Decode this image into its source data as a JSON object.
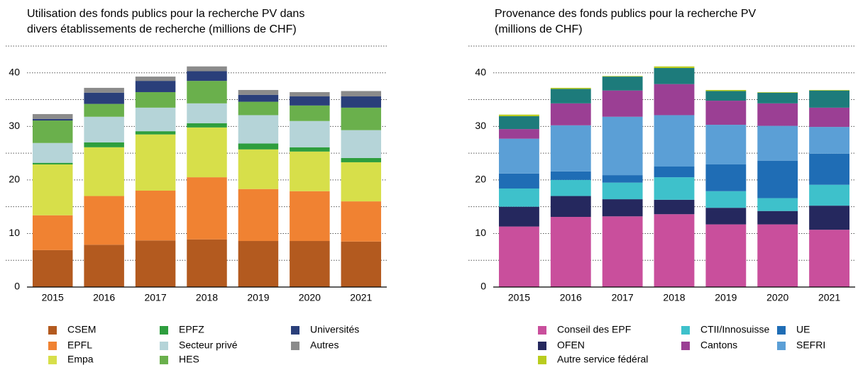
{
  "chart_data": [
    {
      "type": "bar",
      "stacked": true,
      "title_lines": [
        "Utilisation des fonds publics pour la recherche PV dans",
        "divers établissements de recherche (millions de CHF)"
      ],
      "categories": [
        "2015",
        "2016",
        "2017",
        "2018",
        "2019",
        "2020",
        "2021"
      ],
      "series": [
        {
          "name": "CSEM",
          "color": "#b35a1f",
          "values": [
            6.9,
            7.9,
            8.7,
            8.9,
            8.6,
            8.6,
            8.5
          ]
        },
        {
          "name": "EPFL",
          "color": "#f08232",
          "values": [
            6.5,
            9.1,
            9.3,
            11.6,
            9.7,
            9.3,
            7.5
          ]
        },
        {
          "name": "Empa",
          "color": "#d7df4a",
          "values": [
            9.5,
            9.1,
            10.5,
            9.3,
            7.4,
            7.4,
            7.3
          ]
        },
        {
          "name": "EPFZ",
          "color": "#2e9e3e",
          "values": [
            0.3,
            0.9,
            0.6,
            0.8,
            1.1,
            0.8,
            0.8
          ]
        },
        {
          "name": "Secteur privé",
          "color": "#b5d4d8",
          "values": [
            3.7,
            4.8,
            4.4,
            3.7,
            5.3,
            4.9,
            5.2
          ]
        },
        {
          "name": "HES",
          "color": "#6ab04c",
          "values": [
            4.2,
            2.4,
            2.9,
            4.2,
            2.5,
            2.9,
            4.2
          ]
        },
        {
          "name": "Universités",
          "color": "#2a3f7a",
          "values": [
            0.3,
            2.1,
            2.1,
            1.8,
            1.3,
            1.7,
            2.1
          ]
        },
        {
          "name": "Autres",
          "color": "#8b8b8b",
          "values": [
            0.9,
            0.9,
            0.8,
            0.9,
            0.9,
            0.8,
            1.0
          ]
        }
      ],
      "ylim": [
        0,
        45
      ],
      "yticks": [
        0,
        10,
        20,
        30,
        40
      ],
      "minor_grid": [
        5,
        15,
        25,
        35,
        45
      ],
      "grid": true
    },
    {
      "type": "bar",
      "stacked": true,
      "title_lines": [
        "Provenance des fonds publics pour la recherche PV",
        "(millions de CHF)"
      ],
      "categories": [
        "2015",
        "2016",
        "2017",
        "2018",
        "2019",
        "2020",
        "2021"
      ],
      "series": [
        {
          "name": "Conseil des EPF",
          "color": "#c94f9c",
          "values": [
            11.3,
            13.1,
            13.2,
            13.6,
            11.7,
            11.7,
            10.7
          ]
        },
        {
          "name": "OFEN",
          "color": "#25285e",
          "values": [
            3.7,
            3.9,
            3.2,
            2.7,
            3.1,
            2.5,
            4.5
          ]
        },
        {
          "name": "CTII/Innosuisse",
          "color": "#3ec1cb",
          "values": [
            3.4,
            3.0,
            3.1,
            4.2,
            3.1,
            2.4,
            3.9
          ]
        },
        {
          "name": "UE",
          "color": "#1f6db5",
          "values": [
            2.8,
            1.6,
            1.4,
            2.0,
            5.0,
            7.0,
            5.8
          ]
        },
        {
          "name": "SEFRI",
          "color": "#5b9fd6",
          "values": [
            6.5,
            8.6,
            10.9,
            9.6,
            7.4,
            6.5,
            5.0
          ]
        },
        {
          "name": "Cantons",
          "color": "#9b3f94",
          "values": [
            1.8,
            4.1,
            4.9,
            5.8,
            4.5,
            4.2,
            3.6
          ]
        },
        {
          "color": "#1d7b7b",
          "values": [
            2.4,
            2.7,
            2.6,
            3.0,
            1.8,
            2.0,
            3.2
          ]
        },
        {
          "name": "Autre service fédéral",
          "color": "#b9cc1e",
          "values": [
            0.3,
            0.2,
            0.1,
            0.3,
            0.2,
            0.1,
            0.1
          ]
        }
      ],
      "ylim": [
        0,
        45
      ],
      "yticks": [
        0,
        10,
        20,
        30,
        40
      ],
      "minor_grid": [
        5,
        15,
        25,
        35,
        45
      ],
      "grid": true
    }
  ]
}
